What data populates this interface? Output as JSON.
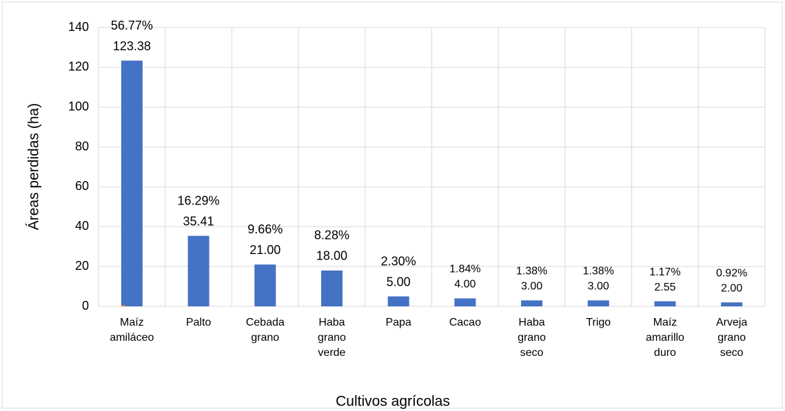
{
  "chart_data": {
    "type": "bar",
    "x_label": "Cultivos agrícolas",
    "y_label": "Áreas perdidas (ha)",
    "categories": [
      [
        "Maíz",
        "amiláceo"
      ],
      [
        "Palto"
      ],
      [
        "Cebada",
        "grano"
      ],
      [
        "Haba",
        "grano",
        "verde"
      ],
      [
        "Papa"
      ],
      [
        "Cacao"
      ],
      [
        "Haba",
        "grano",
        "seco"
      ],
      [
        "Trigo"
      ],
      [
        "Maíz",
        "amarillo",
        "duro"
      ],
      [
        "Arveja",
        "grano",
        "seco"
      ]
    ],
    "series": [
      {
        "color": "#4472c4",
        "values": [
          123.38,
          35.41,
          21,
          18,
          5,
          4,
          3,
          3,
          2.55,
          2
        ],
        "value_labels": [
          "123.38",
          "35.41",
          "21.00",
          "18.00",
          "5.00",
          "4.00",
          "3.00",
          "3.00",
          "2.55",
          "2.00"
        ]
      },
      {
        "color": "#ed7d31",
        "values": [
          0.5677,
          0.1629,
          0.0966,
          0.0828,
          0.023,
          0.0184,
          0.0138,
          0.0138,
          0.0117,
          0.0092
        ],
        "value_labels": [
          "56.77%",
          "16.29%",
          "9.66%",
          "8.28%",
          "2.30%",
          "1.84%",
          "1.38%",
          "1.38%",
          "1.17%",
          "0.92%"
        ]
      }
    ],
    "ylim": [
      0,
      140
    ],
    "yticks": [
      0,
      20,
      40,
      60,
      80,
      100,
      120,
      140
    ],
    "grid": true
  }
}
